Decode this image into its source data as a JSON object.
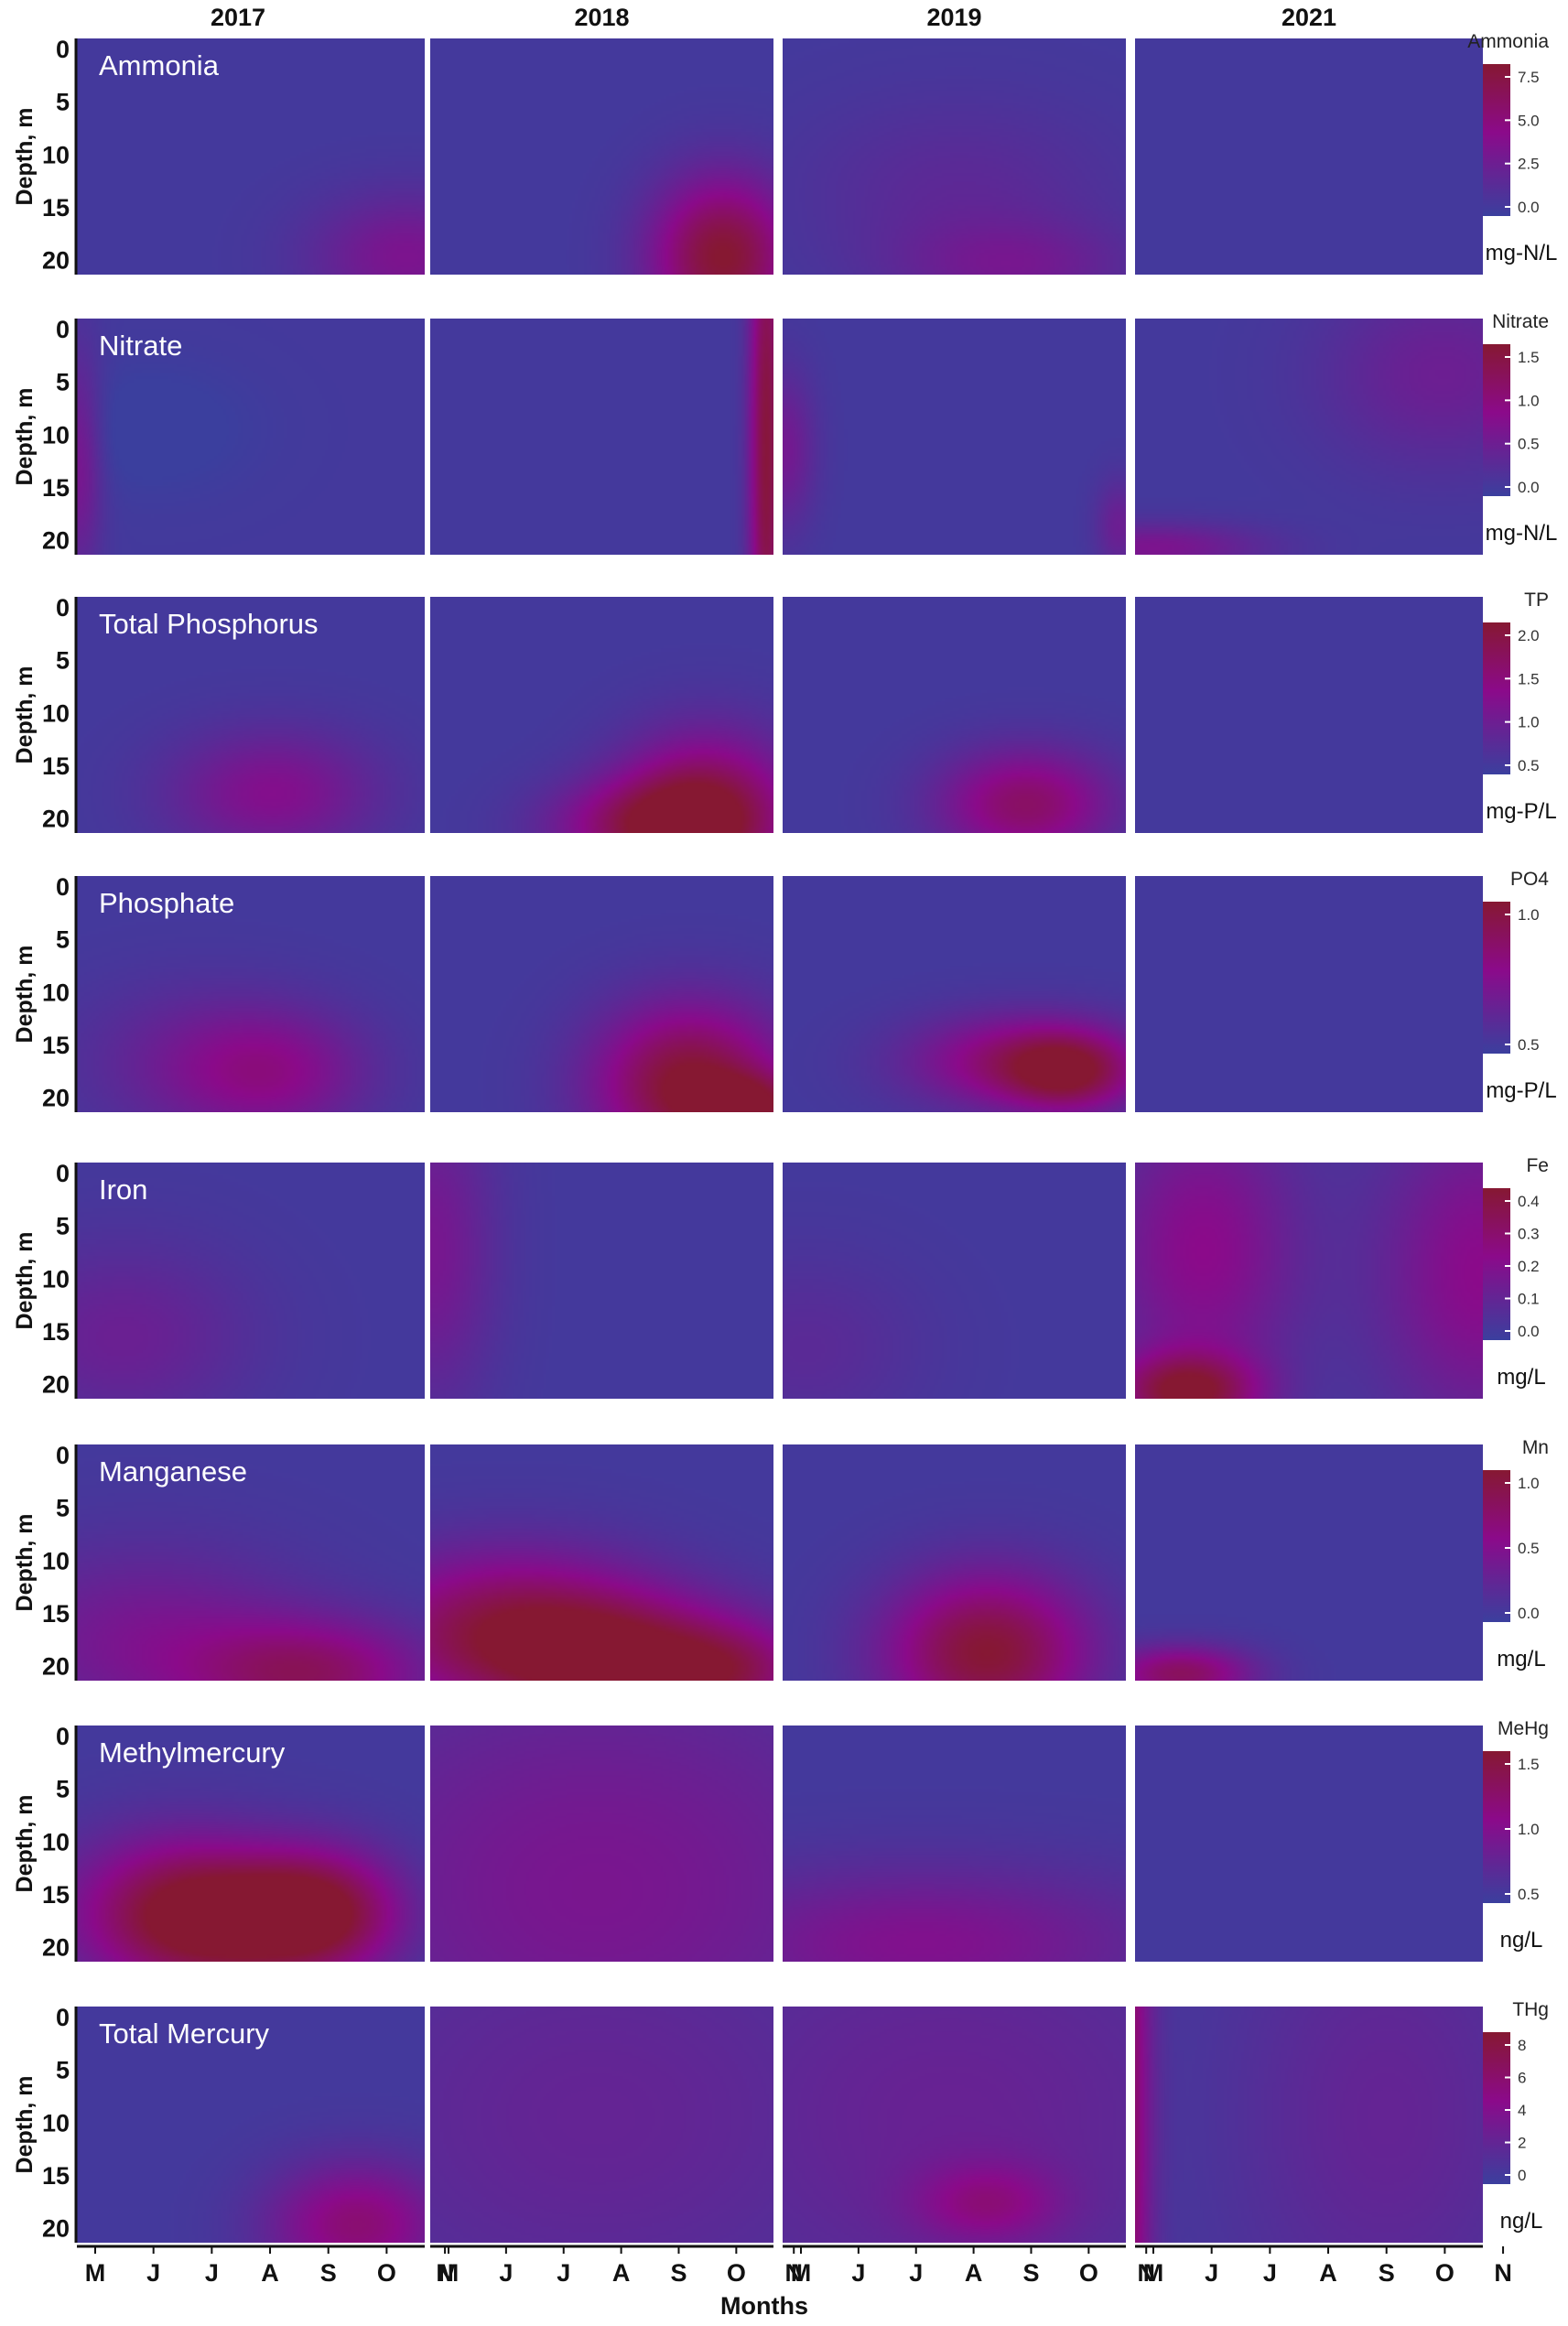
{
  "chart_data": {
    "type": "heatmap",
    "years": [
      "2017",
      "2018",
      "2019",
      "2021"
    ],
    "y_axis_label": "Depth, m",
    "y_ticks": [
      0,
      5,
      10,
      15,
      20
    ],
    "x_axis_label": "Months",
    "x_ticks": [
      "M",
      "J",
      "J",
      "A",
      "S",
      "O",
      "N"
    ],
    "colorscale": {
      "low": "#3b3f9e",
      "mid": "#8b0a8a",
      "high": "#861832"
    },
    "panels": [
      {
        "name": "Ammonia",
        "legend_title": "Ammonia",
        "unit": "mg-N/L",
        "ticks": [
          "7.5",
          "5.0",
          "2.5",
          "0.0"
        ],
        "max": 9,
        "hotspots": [
          [
            {
              "month": 5.9,
              "depth": 20,
              "value": 3.5,
              "sx": 1.2,
              "sy": 4
            }
          ],
          [
            {
              "month": 5.3,
              "depth": 20,
              "value": 8.5,
              "sx": 0.9,
              "sy": 5
            }
          ],
          [
            {
              "month": 3.2,
              "depth": 14,
              "value": 1.5,
              "sx": 2.0,
              "sy": 6
            },
            {
              "month": 4.2,
              "depth": 21,
              "value": 2.5,
              "sx": 1.5,
              "sy": 3
            }
          ],
          []
        ]
      },
      {
        "name": "Nitrate",
        "legend_title": "Nitrate",
        "unit": "mg-N/L",
        "ticks": [
          "1.5",
          "1.0",
          "0.5",
          "0.0"
        ],
        "max": 1.8,
        "hotspots": [
          [
            {
              "month": 0.0,
              "depth": 13,
              "value": 0.7,
              "sx": 0.3,
              "sy": 7
            },
            {
              "month": 1.3,
              "depth": 10,
              "value": -0.2,
              "sx": 1.2,
              "sy": 4
            }
          ],
          [
            {
              "month": 6.1,
              "depth": 12,
              "value": 1.6,
              "sx": 0.22,
              "sy": 20
            }
          ],
          [
            {
              "month": 0.0,
              "depth": 12,
              "value": 0.6,
              "sx": 0.4,
              "sy": 5
            },
            {
              "month": 6.1,
              "depth": 19,
              "value": 0.5,
              "sx": 0.3,
              "sy": 3
            }
          ],
          [
            {
              "month": 0.3,
              "depth": 21,
              "value": 0.7,
              "sx": 1.4,
              "sy": 1.6
            },
            {
              "month": 5.5,
              "depth": 5,
              "value": 0.5,
              "sx": 1.5,
              "sy": 6
            }
          ]
        ]
      },
      {
        "name": "Total Phosphorus",
        "legend_title": "TP",
        "unit": "mg-P/L",
        "ticks": [
          "2.0",
          "1.5",
          "1.0",
          "0.5"
        ],
        "max": 2.5,
        "hotspots": [
          [
            {
              "month": 3.5,
              "depth": 18,
              "value": 1.1,
              "sx": 1.3,
              "sy": 4
            }
          ],
          [
            {
              "month": 5.0,
              "depth": 20,
              "value": 2.3,
              "sx": 1.1,
              "sy": 5
            },
            {
              "month": 3.8,
              "depth": 21,
              "value": 1.4,
              "sx": 1.2,
              "sy": 3
            }
          ],
          [
            {
              "month": 4.4,
              "depth": 19,
              "value": 1.7,
              "sx": 1.1,
              "sy": 3.5
            }
          ],
          []
        ]
      },
      {
        "name": "Phosphate",
        "legend_title": "PO4",
        "unit": "mg-P/L",
        "ticks": [
          "1.0",
          "0.5"
        ],
        "max": 1.4,
        "hotspots": [
          [
            {
              "month": 3.5,
              "depth": 18,
              "value": 0.6,
              "sx": 1.2,
              "sy": 4
            },
            {
              "month": 2.0,
              "depth": 17,
              "value": 0.3,
              "sx": 1.5,
              "sy": 5
            }
          ],
          [
            {
              "month": 4.7,
              "depth": 19,
              "value": 1.35,
              "sx": 1.2,
              "sy": 5
            },
            {
              "month": 5.9,
              "depth": 21,
              "value": 0.8,
              "sx": 0.8,
              "sy": 2
            }
          ],
          [
            {
              "month": 4.3,
              "depth": 17,
              "value": 0.9,
              "sx": 1.4,
              "sy": 3
            },
            {
              "month": 5.2,
              "depth": 18,
              "value": 0.9,
              "sx": 0.8,
              "sy": 2.5
            }
          ],
          []
        ]
      },
      {
        "name": "Iron",
        "legend_title": "Fe",
        "unit": "mg/L",
        "ticks": [
          "0.4",
          "0.3",
          "0.2",
          "0.1",
          "0.0"
        ],
        "max": 0.45,
        "hotspots": [
          [
            {
              "month": 0.8,
              "depth": 16,
              "value": 0.12,
              "sx": 1.6,
              "sy": 6
            }
          ],
          [
            {
              "month": 0.0,
              "depth": 8,
              "value": 0.16,
              "sx": 0.8,
              "sy": 10
            }
          ],
          [
            {
              "month": 0.4,
              "depth": 17,
              "value": 0.07,
              "sx": 1.5,
              "sy": 6
            }
          ],
          [
            {
              "month": 0.9,
              "depth": 21,
              "value": 0.4,
              "sx": 0.9,
              "sy": 2.5
            },
            {
              "month": 1.2,
              "depth": 8,
              "value": 0.22,
              "sx": 1.2,
              "sy": 9
            },
            {
              "month": 6.2,
              "depth": 10,
              "value": 0.22,
              "sx": 1.3,
              "sy": 10
            }
          ]
        ]
      },
      {
        "name": "Manganese",
        "legend_title": "Mn",
        "unit": "mg/L",
        "ticks": [
          "1.0",
          "0.5",
          "0.0"
        ],
        "max": 1.4,
        "hotspots": [
          [
            {
              "month": 4.2,
              "depth": 21,
              "value": 0.9,
              "sx": 1.5,
              "sy": 3.5
            },
            {
              "month": 1.2,
              "depth": 18,
              "value": 0.5,
              "sx": 2.0,
              "sy": 6
            }
          ],
          [
            {
              "month": 1.4,
              "depth": 17,
              "value": 1.15,
              "sx": 1.9,
              "sy": 5
            },
            {
              "month": 3.7,
              "depth": 20,
              "value": 1.1,
              "sx": 1.7,
              "sy": 4
            },
            {
              "month": 5.5,
              "depth": 21,
              "value": 0.6,
              "sx": 1.0,
              "sy": 3
            }
          ],
          [
            {
              "month": 3.7,
              "depth": 19,
              "value": 1.3,
              "sx": 1.3,
              "sy": 5
            }
          ],
          [
            {
              "month": 0.8,
              "depth": 21,
              "value": 1.0,
              "sx": 0.9,
              "sy": 1.8
            }
          ]
        ]
      },
      {
        "name": "Methylmercury",
        "legend_title": "MeHg",
        "unit": "ng/L",
        "ticks": [
          "1.5",
          "1.0",
          "0.5"
        ],
        "max": 1.9,
        "hotspots": [
          [
            {
              "month": 1.8,
              "depth": 17,
              "value": 1.4,
              "sx": 1.4,
              "sy": 5
            },
            {
              "month": 4.4,
              "depth": 17,
              "value": 1.4,
              "sx": 1.0,
              "sy": 4
            },
            {
              "month": 3.0,
              "depth": 18,
              "value": 1.1,
              "sx": 1.4,
              "sy": 4
            }
          ],
          [
            {
              "month": 3.0,
              "depth": 15,
              "value": 0.7,
              "sx": 4.0,
              "sy": 15
            }
          ],
          [
            {
              "month": 2.5,
              "depth": 20,
              "value": 0.8,
              "sx": 3.0,
              "sy": 5
            }
          ],
          []
        ]
      },
      {
        "name": "Total Mercury",
        "legend_title": "THg",
        "unit": "ng/L",
        "ticks": [
          "8",
          "6",
          "4",
          "2",
          "0"
        ],
        "max": 9,
        "hotspots": [
          [
            {
              "month": 5.0,
              "depth": 20,
              "value": 5.5,
              "sx": 1.1,
              "sy": 4
            }
          ],
          [
            {
              "month": 3.0,
              "depth": 10,
              "value": 2.0,
              "sx": 4.0,
              "sy": 15
            }
          ],
          [
            {
              "month": 3.7,
              "depth": 18,
              "value": 3.5,
              "sx": 0.9,
              "sy": 2.5
            },
            {
              "month": 3.0,
              "depth": 10,
              "value": 2.2,
              "sx": 4.0,
              "sy": 15
            }
          ],
          [
            {
              "month": -0.4,
              "depth": 10,
              "value": 9.0,
              "sx": 0.4,
              "sy": 30
            },
            {
              "month": 4.5,
              "depth": 10,
              "value": 2.0,
              "sx": 2.0,
              "sy": 15
            }
          ]
        ]
      }
    ]
  }
}
